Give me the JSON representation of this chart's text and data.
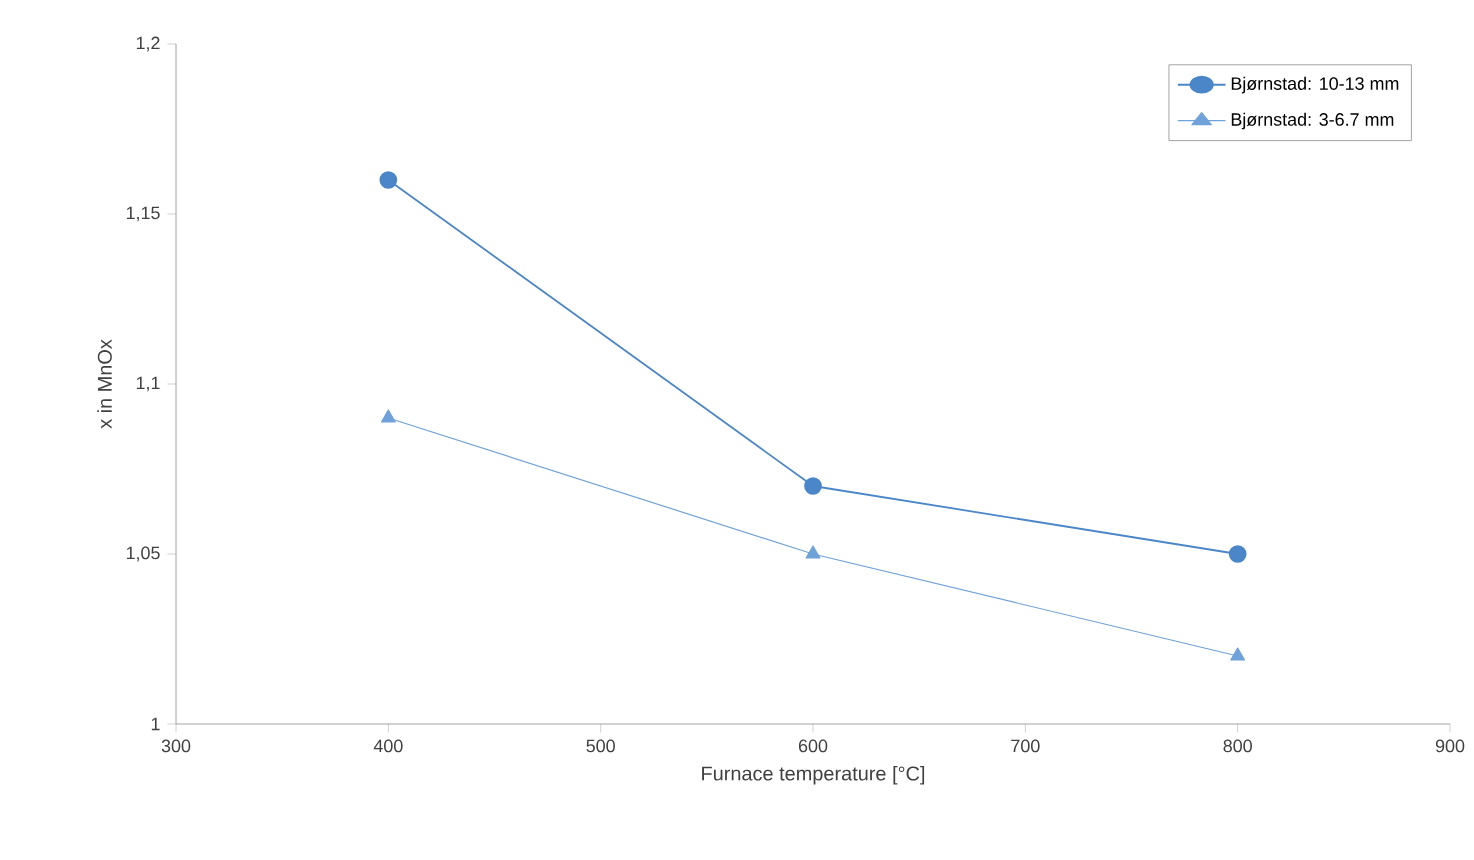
{
  "chart_data": {
    "type": "line",
    "xlabel": "Furnace temperature [°C]",
    "ylabel": "x in MnOx",
    "x": [
      400,
      600,
      800
    ],
    "series": [
      {
        "name": "Bjørnstad: 10-13 mm",
        "color": "#4a86c8",
        "values": [
          1.16,
          1.07,
          1.05
        ],
        "marker": "circle"
      },
      {
        "name": "Bjørnstad: 3-6.7 mm",
        "color": "#6fa2d8",
        "values": [
          1.09,
          1.05,
          1.02
        ],
        "marker": "triangle"
      }
    ],
    "xlim": [
      300,
      900
    ],
    "xticks": [
      300,
      400,
      500,
      600,
      700,
      800,
      900
    ],
    "ylim": [
      1,
      1.2
    ],
    "yticks": [
      {
        "value": 1,
        "label": "1"
      },
      {
        "value": 1.05,
        "label": "1,05"
      },
      {
        "value": 1.1,
        "label": "1,1"
      },
      {
        "value": 1.15,
        "label": "1,15"
      },
      {
        "value": 1.2,
        "label": "1,2"
      }
    ],
    "grid": false,
    "legend": "top right",
    "line_style": "solid"
  }
}
